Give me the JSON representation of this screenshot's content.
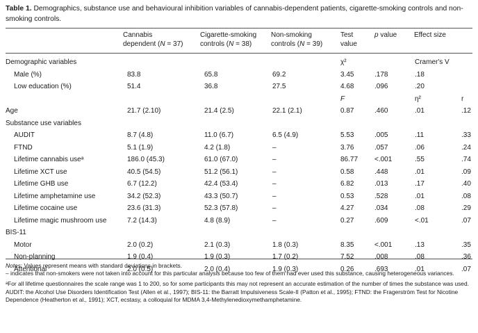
{
  "caption": {
    "label": "Table 1.",
    "text": "Demographics, substance use and behavioural inhibition variables of cannabis-dependent patients, cigarette-smoking controls and non-smoking controls."
  },
  "headers": {
    "cannabis_1": "Cannabis",
    "cannabis_2": "dependent (N = 37)",
    "cig_1": "Cigarette-smoking",
    "cig_2": "controls (N = 38)",
    "non_1": "Non-smoking",
    "non_2": "controls (N = 39)",
    "test_1": "Test",
    "test_2": "value",
    "p": "p value",
    "effect": "Effect size"
  },
  "rows": [
    {
      "label": "Demographic variables",
      "indent": false,
      "cells": [
        "",
        "",
        "",
        "χ²",
        "",
        "Cramer's V",
        ""
      ]
    },
    {
      "label": "Male (%)",
      "indent": true,
      "cells": [
        "83.8",
        "65.8",
        "69.2",
        "3.45",
        ".178",
        ".18",
        ""
      ]
    },
    {
      "label": "Low education (%)",
      "indent": true,
      "cells": [
        "51.4",
        "36.8",
        "27.5",
        "4.68",
        ".096",
        ".20",
        ""
      ]
    },
    {
      "label": "",
      "indent": false,
      "cells": [
        "",
        "",
        "",
        "F",
        "",
        "η²",
        "r"
      ]
    },
    {
      "label": "Age",
      "indent": false,
      "cells": [
        "21.7 (2.10)",
        "21.4 (2.5)",
        "22.1 (2.1)",
        "0.87",
        ".460",
        ".01",
        ".12"
      ]
    },
    {
      "label": "Substance use variables",
      "indent": false,
      "cells": [
        "",
        "",
        "",
        "",
        "",
        "",
        ""
      ]
    },
    {
      "label": "AUDIT",
      "indent": true,
      "cells": [
        "8.7 (4.8)",
        "11.0 (6.7)",
        "6.5 (4.9)",
        "5.53",
        ".005",
        ".11",
        ".33"
      ]
    },
    {
      "label": "FTND",
      "indent": true,
      "cells": [
        "5.1 (1.9)",
        "4.2 (1.8)",
        "–",
        "3.76",
        ".057",
        ".06",
        ".24"
      ]
    },
    {
      "label": "Lifetime cannabis useᵃ",
      "indent": true,
      "cells": [
        "186.0 (45.3)",
        "61.0 (67.0)",
        "–",
        "86.77",
        "<.001",
        ".55",
        ".74"
      ]
    },
    {
      "label": "Lifetime XCT use",
      "indent": true,
      "cells": [
        "40.5 (54.5)",
        "51.2 (56.1)",
        "–",
        "0.58",
        ".448",
        ".01",
        ".09"
      ]
    },
    {
      "label": "Lifetime GHB use",
      "indent": true,
      "cells": [
        "6.7 (12.2)",
        "42.4 (53.4)",
        "–",
        "6.82",
        ".013",
        ".17",
        ".40"
      ]
    },
    {
      "label": "Lifetime amphetamine use",
      "indent": true,
      "cells": [
        "34.2 (52.3)",
        "43.3 (50.7)",
        "–",
        "0.53",
        ".528",
        ".01",
        ".08"
      ]
    },
    {
      "label": "Lifetime cocaine use",
      "indent": true,
      "cells": [
        "23.6 (31.3)",
        "52.3 (57.8)",
        "–",
        "4.27",
        ".034",
        ".08",
        ".29"
      ]
    },
    {
      "label": "Lifetime magic mushroom use",
      "indent": true,
      "cells": [
        "7.2 (14.3)",
        "4.8 (8.9)",
        "–",
        "0.27",
        ".609",
        "<.01",
        ".07"
      ]
    },
    {
      "label": "BIS-11",
      "indent": false,
      "cells": [
        "",
        "",
        "",
        "",
        "",
        "",
        ""
      ]
    },
    {
      "label": "Motor",
      "indent": true,
      "cells": [
        "2.0 (0.2)",
        "2.1 (0.3)",
        "1.8 (0.3)",
        "8.35",
        "<.001",
        ".13",
        ".35"
      ]
    },
    {
      "label": "Non-planning",
      "indent": true,
      "cells": [
        "1.9 (0.4)",
        "1.9 (0.3)",
        "1.7 (0.2)",
        "7.52",
        ".008",
        ".08",
        ".36"
      ]
    },
    {
      "label": "Attentional",
      "indent": true,
      "cells": [
        "2.0 (0.5)",
        "2.0 (0.4)",
        "1.9 (0.3)",
        "0.26",
        ".693",
        ".01",
        ".07"
      ]
    }
  ],
  "notes": {
    "n1_label": "Notes",
    "n1_text": ": Values represent means with standard deviations in brackets.",
    "n2": "– indicates that non-smokers were not taken into account for this particular analysis because too few of them had ever used this substance, causing heterogeneous variances.",
    "n3": "ᵃFor all lifetime questionnaires the scale range was 1 to 200, so for some participants this may not represent an accurate estimation of the number of times the substance was used.",
    "n4": "AUDIT: the Alcohol Use Disorders Identification Test (Allen et al., 1997); BIS-11: the Barratt Impulsiveness Scale-II (Patton et al., 1995); FTND: the Fragerström Test for Nicotine Dependence (Heatherton et al., 1991); XCT, ecstasy, a colloquial for MDMA 3,4-Methylenedioxymethamphetamine."
  }
}
